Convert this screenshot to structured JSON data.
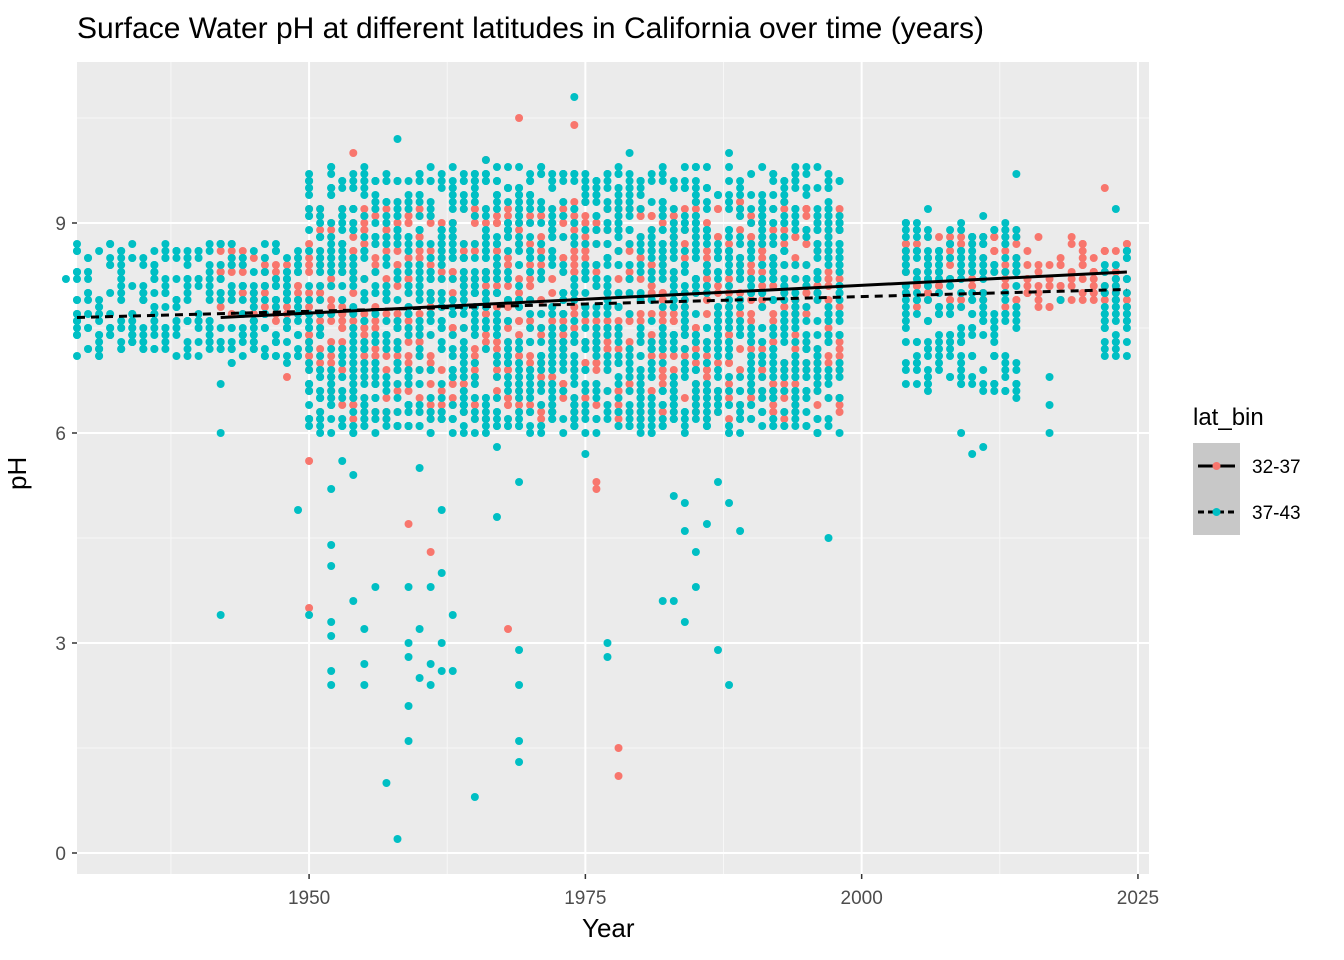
{
  "chart_data": {
    "type": "scatter",
    "title": "Surface Water pH at different latitudes in California over time (years)",
    "xlabel": "Year",
    "ylabel": "pH",
    "xlim": [
      1929,
      2026
    ],
    "ylim": [
      -0.3,
      11.3
    ],
    "x_ticks": [
      1950,
      1975,
      2000,
      2025
    ],
    "y_ticks": [
      0,
      3,
      6,
      9
    ],
    "grid": true,
    "legend": {
      "title": "lat_bin",
      "placement": "right",
      "entries": [
        {
          "label": "32-37",
          "color": "#F8766D",
          "line": "solid"
        },
        {
          "label": "37-43",
          "color": "#00BFC4",
          "line": "dashed"
        }
      ]
    },
    "series": [
      {
        "name": "32-37",
        "color": "#F8766D",
        "trend": {
          "x": [
            1942,
            2024
          ],
          "y": [
            7.65,
            8.3
          ],
          "style": "solid"
        },
        "clusters": [
          {
            "x": [
              1942,
              1949
            ],
            "y": [
              7.6,
              8.6
            ]
          },
          {
            "x": [
              1950,
              1998
            ],
            "y": [
              6.2,
              9.3
            ]
          },
          {
            "x": [
              2004,
              2024
            ],
            "y": [
              7.8,
              8.8
            ]
          }
        ],
        "points": [
          [
            1950,
            5.6
          ],
          [
            1950,
            3.5
          ],
          [
            1954,
            10.0
          ],
          [
            1959,
            4.7
          ],
          [
            1961,
            4.3
          ],
          [
            1968,
            3.2
          ],
          [
            1969,
            10.5
          ],
          [
            1974,
            10.4
          ],
          [
            1976,
            5.2
          ],
          [
            1976,
            5.3
          ],
          [
            1978,
            1.5
          ],
          [
            1978,
            1.1
          ],
          [
            2022,
            9.5
          ],
          [
            1972,
            6.4
          ],
          [
            1966,
            9.9
          ],
          [
            1985,
            6.5
          ],
          [
            1993,
            9.3
          ],
          [
            2014,
            8.9
          ],
          [
            1943,
            8.6
          ],
          [
            1948,
            6.8
          ],
          [
            1960,
            9.1
          ],
          [
            1955,
            7.0
          ],
          [
            1980,
            9.4
          ],
          [
            1990,
            7.1
          ]
        ]
      },
      {
        "name": "37-43",
        "color": "#00BFC4",
        "trend": {
          "x": [
            1929,
            2024
          ],
          "y": [
            7.65,
            8.05
          ],
          "style": "dashed"
        },
        "clusters": [
          {
            "x": [
              1929,
              1941
            ],
            "y": [
              7.1,
              8.7
            ]
          },
          {
            "x": [
              1942,
              1949
            ],
            "y": [
              7.0,
              8.7
            ]
          },
          {
            "x": [
              1950,
              1998
            ],
            "y": [
              6.0,
              9.8
            ]
          },
          {
            "x": [
              2004,
              2014
            ],
            "y": [
              6.6,
              9.0
            ]
          },
          {
            "x": [
              2022,
              2024
            ],
            "y": [
              7.0,
              8.6
            ]
          }
        ],
        "points": [
          [
            1928,
            8.2
          ],
          [
            1942,
            3.4
          ],
          [
            1942,
            6.0
          ],
          [
            1942,
            6.7
          ],
          [
            1949,
            4.9
          ],
          [
            1950,
            3.4
          ],
          [
            1952,
            2.4
          ],
          [
            1952,
            2.6
          ],
          [
            1952,
            3.1
          ],
          [
            1952,
            3.3
          ],
          [
            1952,
            4.1
          ],
          [
            1952,
            4.4
          ],
          [
            1952,
            5.2
          ],
          [
            1953,
            5.6
          ],
          [
            1954,
            5.4
          ],
          [
            1954,
            3.6
          ],
          [
            1955,
            2.4
          ],
          [
            1955,
            2.7
          ],
          [
            1955,
            3.2
          ],
          [
            1956,
            3.8
          ],
          [
            1957,
            1.0
          ],
          [
            1958,
            0.2
          ],
          [
            1958,
            10.2
          ],
          [
            1959,
            1.6
          ],
          [
            1959,
            2.1
          ],
          [
            1959,
            2.8
          ],
          [
            1959,
            3.0
          ],
          [
            1959,
            3.8
          ],
          [
            1960,
            5.5
          ],
          [
            1960,
            2.5
          ],
          [
            1960,
            3.2
          ],
          [
            1961,
            2.4
          ],
          [
            1961,
            2.7
          ],
          [
            1961,
            3.8
          ],
          [
            1962,
            2.6
          ],
          [
            1962,
            3.0
          ],
          [
            1962,
            4.0
          ],
          [
            1962,
            4.9
          ],
          [
            1963,
            2.6
          ],
          [
            1963,
            3.4
          ],
          [
            1965,
            0.8
          ],
          [
            1967,
            4.8
          ],
          [
            1967,
            5.8
          ],
          [
            1969,
            1.3
          ],
          [
            1969,
            1.6
          ],
          [
            1969,
            2.4
          ],
          [
            1969,
            2.9
          ],
          [
            1969,
            5.3
          ],
          [
            1974,
            10.8
          ],
          [
            1975,
            5.7
          ],
          [
            1977,
            2.8
          ],
          [
            1977,
            3.0
          ],
          [
            1982,
            3.6
          ],
          [
            1983,
            3.6
          ],
          [
            1983,
            5.1
          ],
          [
            1984,
            3.3
          ],
          [
            1984,
            4.6
          ],
          [
            1984,
            5.0
          ],
          [
            1985,
            3.8
          ],
          [
            1985,
            4.3
          ],
          [
            1986,
            4.7
          ],
          [
            1987,
            2.9
          ],
          [
            1987,
            5.3
          ],
          [
            1988,
            2.4
          ],
          [
            1988,
            5.0
          ],
          [
            1989,
            4.6
          ],
          [
            1997,
            4.5
          ],
          [
            2006,
            9.2
          ],
          [
            2006,
            6.8
          ],
          [
            2009,
            6.0
          ],
          [
            2010,
            5.7
          ],
          [
            2011,
            5.8
          ],
          [
            2011,
            9.1
          ],
          [
            2014,
            9.7
          ],
          [
            2014,
            6.5
          ],
          [
            2017,
            6.0
          ],
          [
            2017,
            6.4
          ],
          [
            2017,
            6.8
          ],
          [
            2018,
            7.9
          ],
          [
            2023,
            9.2
          ],
          [
            2024,
            8.6
          ],
          [
            1988,
            10.0
          ],
          [
            1979,
            10.0
          ],
          [
            1950,
            9.7
          ],
          [
            1966,
            9.9
          ],
          [
            1985,
            9.8
          ]
        ]
      }
    ]
  }
}
